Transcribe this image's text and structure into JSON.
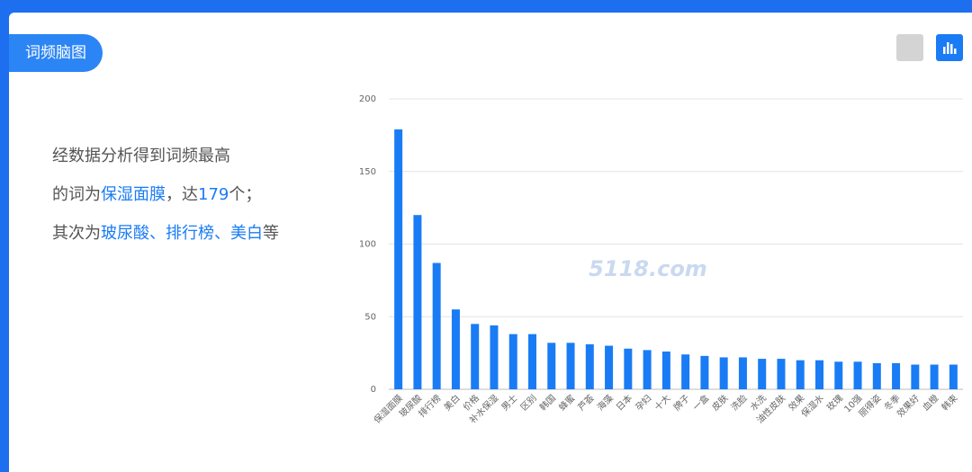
{
  "tab": "词频脑图",
  "summary": {
    "line1": "经数据分析得到词频最高",
    "line2_prefix": "的词为",
    "line2_mid": "，达",
    "line2_suffix": "个；",
    "line3_prefix": "其次为",
    "separator": "、",
    "line3_suffix": "等"
  },
  "watermark": "5118.com",
  "chart_data": {
    "type": "bar",
    "color": "#1a7cf5",
    "grid": true,
    "categories": [
      "保湿面膜",
      "玻尿酸",
      "排行榜",
      "美白",
      "价格",
      "补水保湿",
      "男士",
      "区别",
      "韩国",
      "蜂蜜",
      "芦荟",
      "海藻",
      "日本",
      "孕妇",
      "十大",
      "牌子",
      "一盒",
      "皮肤",
      "洗脸",
      "水洗",
      "油性皮肤",
      "效果",
      "保湿水",
      "玫瑰",
      "10强",
      "丽得姿",
      "冬季",
      "效果好",
      "血橙",
      "韩束"
    ],
    "values": [
      179,
      120,
      87,
      55,
      45,
      44,
      38,
      38,
      32,
      32,
      31,
      30,
      28,
      27,
      26,
      24,
      23,
      22,
      22,
      21,
      21,
      20,
      20,
      19,
      19,
      18,
      18,
      17,
      17,
      17
    ],
    "ylim": [
      0,
      200
    ],
    "yticks": [
      0,
      50,
      100,
      150,
      200
    ]
  }
}
